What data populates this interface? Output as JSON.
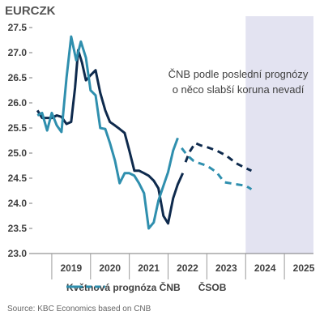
{
  "chart_data": {
    "type": "line",
    "title": "EURCZK",
    "y_axis": {
      "min": 23.0,
      "max": 27.5,
      "ticks": [
        23.0,
        23.5,
        24.0,
        24.5,
        25.0,
        25.5,
        26.0,
        26.5,
        27.0,
        27.5
      ]
    },
    "x_axis": {
      "min": 2018.5,
      "max": 2025.75,
      "ticks": [
        "2019",
        "2020",
        "2021",
        "2022",
        "2023",
        "2024",
        "2025"
      ],
      "tick_years": [
        2019,
        2020,
        2021,
        2022,
        2023,
        2024,
        2025
      ]
    },
    "forecast_region": {
      "from": 2024.0,
      "to": 2025.75,
      "color": "#e3e3f1"
    },
    "annotation": {
      "lines": [
        "ČNB podle poslední prognózy",
        "o něco slabší koruna nevadí"
      ]
    },
    "legend_position": "bottom",
    "series": [
      {
        "name": "Květnová prognóza ČNB",
        "color": "#0e2a4d",
        "historical": [
          [
            2018.63,
            25.85
          ],
          [
            2018.75,
            25.7
          ],
          [
            2018.88,
            25.7
          ],
          [
            2019.0,
            25.7
          ],
          [
            2019.13,
            25.75
          ],
          [
            2019.25,
            25.72
          ],
          [
            2019.38,
            25.58
          ],
          [
            2019.5,
            25.62
          ],
          [
            2019.6,
            26.3
          ],
          [
            2019.68,
            27.05
          ],
          [
            2019.78,
            26.8
          ],
          [
            2019.88,
            26.45
          ],
          [
            2020.0,
            26.55
          ],
          [
            2020.13,
            26.65
          ],
          [
            2020.25,
            26.2
          ],
          [
            2020.38,
            25.85
          ],
          [
            2020.5,
            25.62
          ],
          [
            2020.63,
            25.55
          ],
          [
            2020.75,
            25.48
          ],
          [
            2020.88,
            25.4
          ],
          [
            2021.0,
            25.05
          ],
          [
            2021.13,
            24.65
          ],
          [
            2021.25,
            24.65
          ],
          [
            2021.38,
            24.6
          ],
          [
            2021.5,
            24.55
          ],
          [
            2021.63,
            24.45
          ],
          [
            2021.75,
            24.3
          ],
          [
            2021.88,
            23.75
          ],
          [
            2022.0,
            23.6
          ],
          [
            2022.13,
            24.1
          ],
          [
            2022.25,
            24.38
          ],
          [
            2022.38,
            24.6
          ]
        ],
        "forecast": [
          [
            2022.45,
            24.82
          ],
          [
            2022.55,
            25.02
          ],
          [
            2022.7,
            25.2
          ],
          [
            2022.85,
            25.15
          ],
          [
            2023.0,
            25.12
          ],
          [
            2023.25,
            25.05
          ],
          [
            2023.5,
            24.95
          ],
          [
            2023.75,
            24.8
          ],
          [
            2024.0,
            24.7
          ],
          [
            2024.15,
            24.65
          ]
        ]
      },
      {
        "name": "ČSOB",
        "color": "#2f8fae",
        "historical": [
          [
            2018.63,
            25.75
          ],
          [
            2018.75,
            25.8
          ],
          [
            2018.88,
            25.45
          ],
          [
            2019.0,
            25.8
          ],
          [
            2019.13,
            25.55
          ],
          [
            2019.25,
            25.42
          ],
          [
            2019.38,
            26.5
          ],
          [
            2019.5,
            27.32
          ],
          [
            2019.63,
            26.85
          ],
          [
            2019.75,
            27.22
          ],
          [
            2019.88,
            26.9
          ],
          [
            2020.0,
            26.25
          ],
          [
            2020.13,
            26.15
          ],
          [
            2020.25,
            25.5
          ],
          [
            2020.38,
            25.48
          ],
          [
            2020.5,
            25.2
          ],
          [
            2020.63,
            24.85
          ],
          [
            2020.75,
            24.4
          ],
          [
            2020.88,
            24.6
          ],
          [
            2021.0,
            24.6
          ],
          [
            2021.13,
            24.55
          ],
          [
            2021.25,
            24.4
          ],
          [
            2021.38,
            24.2
          ],
          [
            2021.5,
            23.5
          ],
          [
            2021.63,
            23.62
          ],
          [
            2021.75,
            24.05
          ],
          [
            2021.88,
            24.35
          ],
          [
            2022.0,
            24.62
          ],
          [
            2022.13,
            25.05
          ],
          [
            2022.25,
            25.3
          ]
        ],
        "forecast": [
          [
            2022.35,
            25.1
          ],
          [
            2022.5,
            24.95
          ],
          [
            2022.65,
            24.85
          ],
          [
            2022.8,
            24.8
          ],
          [
            2023.0,
            24.75
          ],
          [
            2023.25,
            24.62
          ],
          [
            2023.45,
            24.42
          ],
          [
            2023.6,
            24.4
          ],
          [
            2023.75,
            24.38
          ],
          [
            2024.0,
            24.35
          ],
          [
            2024.15,
            24.28
          ]
        ]
      }
    ],
    "source": "Source: KBC Economics based on CNB"
  }
}
